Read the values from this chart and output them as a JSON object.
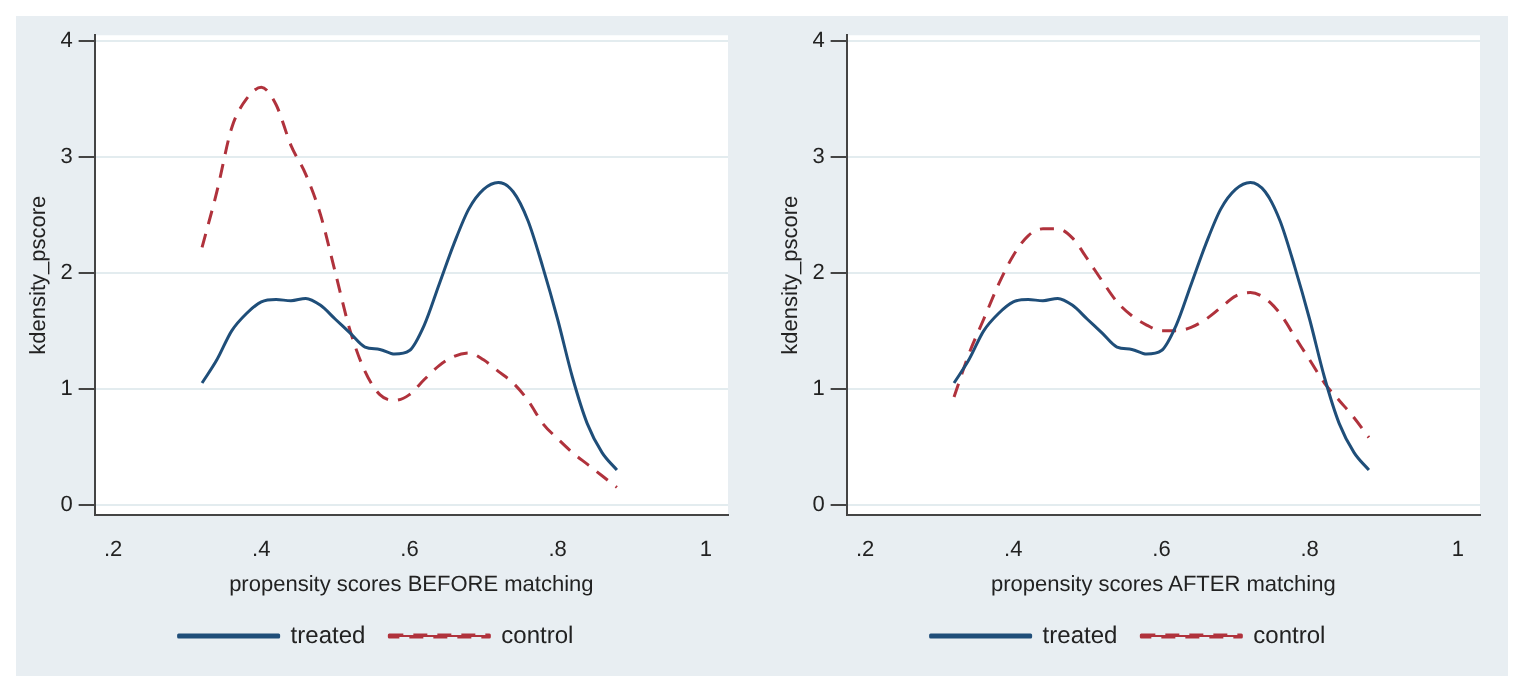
{
  "chart_data": [
    {
      "type": "line",
      "xlabel": "propensity scores BEFORE matching",
      "ylabel": "kdensity_pscore",
      "xlim": [
        0.175,
        1.03
      ],
      "ylim": [
        -0.09,
        4.05
      ],
      "xticks": [
        {
          "value": 0.2,
          "label": ".2"
        },
        {
          "value": 0.4,
          "label": ".4"
        },
        {
          "value": 0.6,
          "label": ".6"
        },
        {
          "value": 0.8,
          "label": ".8"
        },
        1
      ],
      "yticks": [
        0,
        1,
        2,
        3,
        4
      ],
      "grid": "y",
      "legend": "bottom",
      "marker": "none",
      "x": [
        0.32,
        0.34,
        0.36,
        0.38,
        0.4,
        0.42,
        0.44,
        0.46,
        0.48,
        0.5,
        0.52,
        0.54,
        0.56,
        0.58,
        0.6,
        0.62,
        0.64,
        0.66,
        0.68,
        0.7,
        0.72,
        0.74,
        0.76,
        0.78,
        0.8,
        0.82,
        0.84,
        0.86,
        0.88
      ],
      "series": [
        {
          "name": "treated",
          "color": "#1f4e79",
          "line_style": "solid",
          "values": [
            1.05,
            1.25,
            1.5,
            1.65,
            1.75,
            1.77,
            1.76,
            1.78,
            1.72,
            1.6,
            1.48,
            1.36,
            1.34,
            1.3,
            1.33,
            1.55,
            1.9,
            2.25,
            2.55,
            2.72,
            2.78,
            2.7,
            2.45,
            2.05,
            1.6,
            1.1,
            0.7,
            0.45,
            0.3
          ]
        },
        {
          "name": "control",
          "color": "#b0323c",
          "line_style": "dashed",
          "values": [
            2.22,
            2.7,
            3.25,
            3.5,
            3.6,
            3.45,
            3.1,
            2.85,
            2.5,
            2.0,
            1.5,
            1.15,
            0.95,
            0.9,
            0.95,
            1.08,
            1.2,
            1.28,
            1.31,
            1.25,
            1.15,
            1.05,
            0.9,
            0.7,
            0.57,
            0.45,
            0.35,
            0.25,
            0.15
          ]
        }
      ]
    },
    {
      "type": "line",
      "xlabel": "propensity scores AFTER matching",
      "ylabel": "kdensity_pscore",
      "xlim": [
        0.175,
        1.03
      ],
      "ylim": [
        -0.09,
        4.05
      ],
      "xticks": [
        {
          "value": 0.2,
          "label": ".2"
        },
        {
          "value": 0.4,
          "label": ".4"
        },
        {
          "value": 0.6,
          "label": ".6"
        },
        {
          "value": 0.8,
          "label": ".8"
        },
        1
      ],
      "yticks": [
        0,
        1,
        2,
        3,
        4
      ],
      "grid": "y",
      "legend": "bottom",
      "marker": "none",
      "x": [
        0.32,
        0.34,
        0.36,
        0.38,
        0.4,
        0.42,
        0.44,
        0.46,
        0.48,
        0.5,
        0.52,
        0.54,
        0.56,
        0.58,
        0.6,
        0.62,
        0.64,
        0.66,
        0.68,
        0.7,
        0.72,
        0.74,
        0.76,
        0.78,
        0.8,
        0.82,
        0.84,
        0.86,
        0.88
      ],
      "series": [
        {
          "name": "treated",
          "color": "#1f4e79",
          "line_style": "solid",
          "values": [
            1.05,
            1.25,
            1.5,
            1.65,
            1.75,
            1.77,
            1.76,
            1.78,
            1.72,
            1.6,
            1.48,
            1.36,
            1.34,
            1.3,
            1.33,
            1.55,
            1.9,
            2.25,
            2.55,
            2.72,
            2.78,
            2.7,
            2.45,
            2.05,
            1.6,
            1.1,
            0.7,
            0.45,
            0.3
          ]
        },
        {
          "name": "control",
          "color": "#b0323c",
          "line_style": "dashed",
          "values": [
            0.93,
            1.3,
            1.6,
            1.9,
            2.15,
            2.32,
            2.38,
            2.38,
            2.3,
            2.12,
            1.93,
            1.75,
            1.63,
            1.55,
            1.5,
            1.5,
            1.53,
            1.6,
            1.7,
            1.8,
            1.83,
            1.78,
            1.65,
            1.45,
            1.25,
            1.05,
            0.9,
            0.75,
            0.58
          ]
        }
      ]
    }
  ]
}
